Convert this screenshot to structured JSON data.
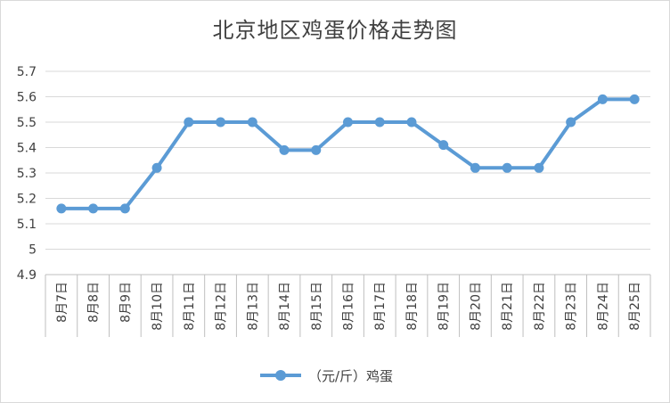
{
  "chart_data": {
    "type": "line",
    "title": "北京地区鸡蛋价格走势图",
    "categories": [
      "8月7日",
      "8月8日",
      "8月9日",
      "8月10日",
      "8月11日",
      "8月12日",
      "8月13日",
      "8月14日",
      "8月15日",
      "8月16日",
      "8月17日",
      "8月18日",
      "8月19日",
      "8月20日",
      "8月21日",
      "8月22日",
      "8月23日",
      "8月24日",
      "8月25日"
    ],
    "series": [
      {
        "name": "（元/斤）鸡蛋",
        "color": "#5b9bd5",
        "values": [
          5.16,
          5.16,
          5.16,
          5.32,
          5.5,
          5.5,
          5.5,
          5.39,
          5.39,
          5.5,
          5.5,
          5.5,
          5.41,
          5.32,
          5.32,
          5.32,
          5.5,
          5.59,
          5.59
        ]
      }
    ],
    "ylim": [
      4.9,
      5.7
    ],
    "yticks": [
      "4.9",
      "5",
      "5.1",
      "5.2",
      "5.3",
      "5.4",
      "5.5",
      "5.6",
      "5.7"
    ],
    "grid": true,
    "legend_position": "bottom"
  }
}
